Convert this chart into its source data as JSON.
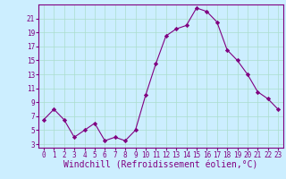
{
  "x": [
    0,
    1,
    2,
    3,
    4,
    5,
    6,
    7,
    8,
    9,
    10,
    11,
    12,
    13,
    14,
    15,
    16,
    17,
    18,
    19,
    20,
    21,
    22,
    23
  ],
  "y": [
    6.5,
    8.0,
    6.5,
    4.0,
    5.0,
    6.0,
    3.5,
    4.0,
    3.5,
    5.0,
    10.0,
    14.5,
    18.5,
    19.5,
    20.0,
    22.5,
    22.0,
    20.5,
    16.5,
    15.0,
    13.0,
    10.5,
    9.5,
    8.0
  ],
  "line_color": "#800080",
  "marker": "D",
  "marker_size": 2.2,
  "bg_color": "#cceeff",
  "grid_color": "#aaddcc",
  "xlabel": "Windchill (Refroidissement éolien,°C)",
  "xlabel_color": "#800080",
  "ylabel_ticks": [
    3,
    5,
    7,
    9,
    11,
    13,
    15,
    17,
    19,
    21
  ],
  "xlim": [
    -0.5,
    23.5
  ],
  "ylim": [
    2.5,
    23.0
  ],
  "xticks": [
    0,
    1,
    2,
    3,
    4,
    5,
    6,
    7,
    8,
    9,
    10,
    11,
    12,
    13,
    14,
    15,
    16,
    17,
    18,
    19,
    20,
    21,
    22,
    23
  ],
  "tick_label_color": "#800080",
  "tick_label_fontsize": 5.5,
  "xlabel_fontsize": 7.0
}
